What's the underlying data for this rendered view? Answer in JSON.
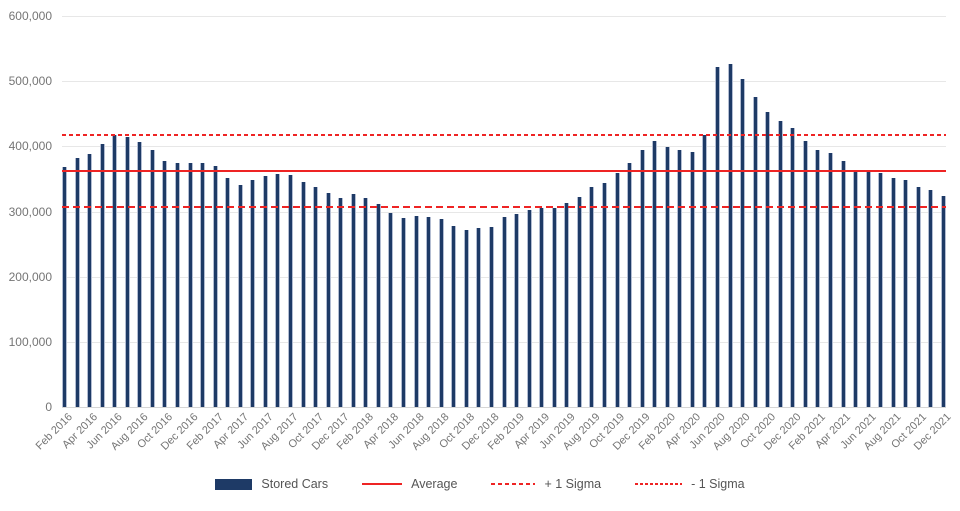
{
  "chart_data": {
    "type": "bar",
    "title": "",
    "categories": [
      "Feb 2016",
      "Mar 2016",
      "Apr 2016",
      "May 2016",
      "Jun 2016",
      "Jul 2016",
      "Aug 2016",
      "Sep 2016",
      "Oct 2016",
      "Nov 2016",
      "Dec 2016",
      "Jan 2017",
      "Feb 2017",
      "Mar 2017",
      "Apr 2017",
      "May 2017",
      "Jun 2017",
      "Jul 2017",
      "Aug 2017",
      "Sep 2017",
      "Oct 2017",
      "Nov 2017",
      "Dec 2017",
      "Jan 2018",
      "Feb 2018",
      "Mar 2018",
      "Apr 2018",
      "May 2018",
      "Jun 2018",
      "Jul 2018",
      "Aug 2018",
      "Sep 2018",
      "Oct 2018",
      "Nov 2018",
      "Dec 2018",
      "Jan 2019",
      "Feb 2019",
      "Mar 2019",
      "Apr 2019",
      "May 2019",
      "Jun 2019",
      "Jul 2019",
      "Aug 2019",
      "Sep 2019",
      "Oct 2019",
      "Nov 2019",
      "Dec 2019",
      "Jan 2020",
      "Feb 2020",
      "Mar 2020",
      "Apr 2020",
      "May 2020",
      "Jun 2020",
      "Jul 2020",
      "Aug 2020",
      "Sep 2020",
      "Oct 2020",
      "Nov 2020",
      "Dec 2020",
      "Jan 2021",
      "Feb 2021",
      "Mar 2021",
      "Apr 2021",
      "May 2021",
      "Jun 2021",
      "Jul 2021",
      "Aug 2021",
      "Sep 2021",
      "Oct 2021",
      "Nov 2021",
      "Dec 2021"
    ],
    "series": [
      {
        "name": "Stored Cars",
        "values": [
          368000,
          382000,
          388000,
          403000,
          418000,
          415000,
          406000,
          394000,
          378000,
          374000,
          375000,
          374000,
          370000,
          351000,
          340000,
          348000,
          354000,
          357000,
          356000,
          345000,
          338000,
          328000,
          320000,
          327000,
          320000,
          311000,
          297000,
          290000,
          293000,
          291000,
          288000,
          278000,
          272000,
          274000,
          277000,
          291000,
          296000,
          302000,
          306000,
          305000,
          313000,
          322000,
          337000,
          344000,
          359000,
          375000,
          395000,
          408000,
          399000,
          394000,
          392000,
          418000,
          521000,
          527000,
          504000,
          476000,
          452000,
          439000,
          428000,
          408000,
          395000,
          390000,
          378000,
          364000,
          362000,
          359000,
          352000,
          349000,
          338000,
          333000,
          324000
        ]
      }
    ],
    "reference_lines": [
      {
        "name": "Average",
        "value": 362000,
        "style": "solid"
      },
      {
        "name": "+ 1 Sigma",
        "value": 418000,
        "style": "dashed"
      },
      {
        "name": "- 1 Sigma",
        "value": 307000,
        "style": "dashed-long"
      }
    ],
    "xlabel": "",
    "ylabel": "",
    "ylim": [
      0,
      600000
    ],
    "ytick_interval": 100000,
    "ytick_labels": [
      "0",
      "100,000",
      "200,000",
      "300,000",
      "400,000",
      "500,000",
      "600,000"
    ],
    "x_label_every": 2,
    "grid": true,
    "legend_position": "bottom",
    "colors": {
      "bar": "#1e3a66",
      "bar_edge": "#b3bdd2",
      "reference": "#ee2424",
      "gridline": "#e7e7e7",
      "axis_text": "#757575",
      "legend_text": "#555555"
    }
  },
  "legend": {
    "items": [
      {
        "label": "Stored Cars"
      },
      {
        "label": "Average"
      },
      {
        "label": "+ 1 Sigma"
      },
      {
        "label": "- 1 Sigma"
      }
    ]
  }
}
